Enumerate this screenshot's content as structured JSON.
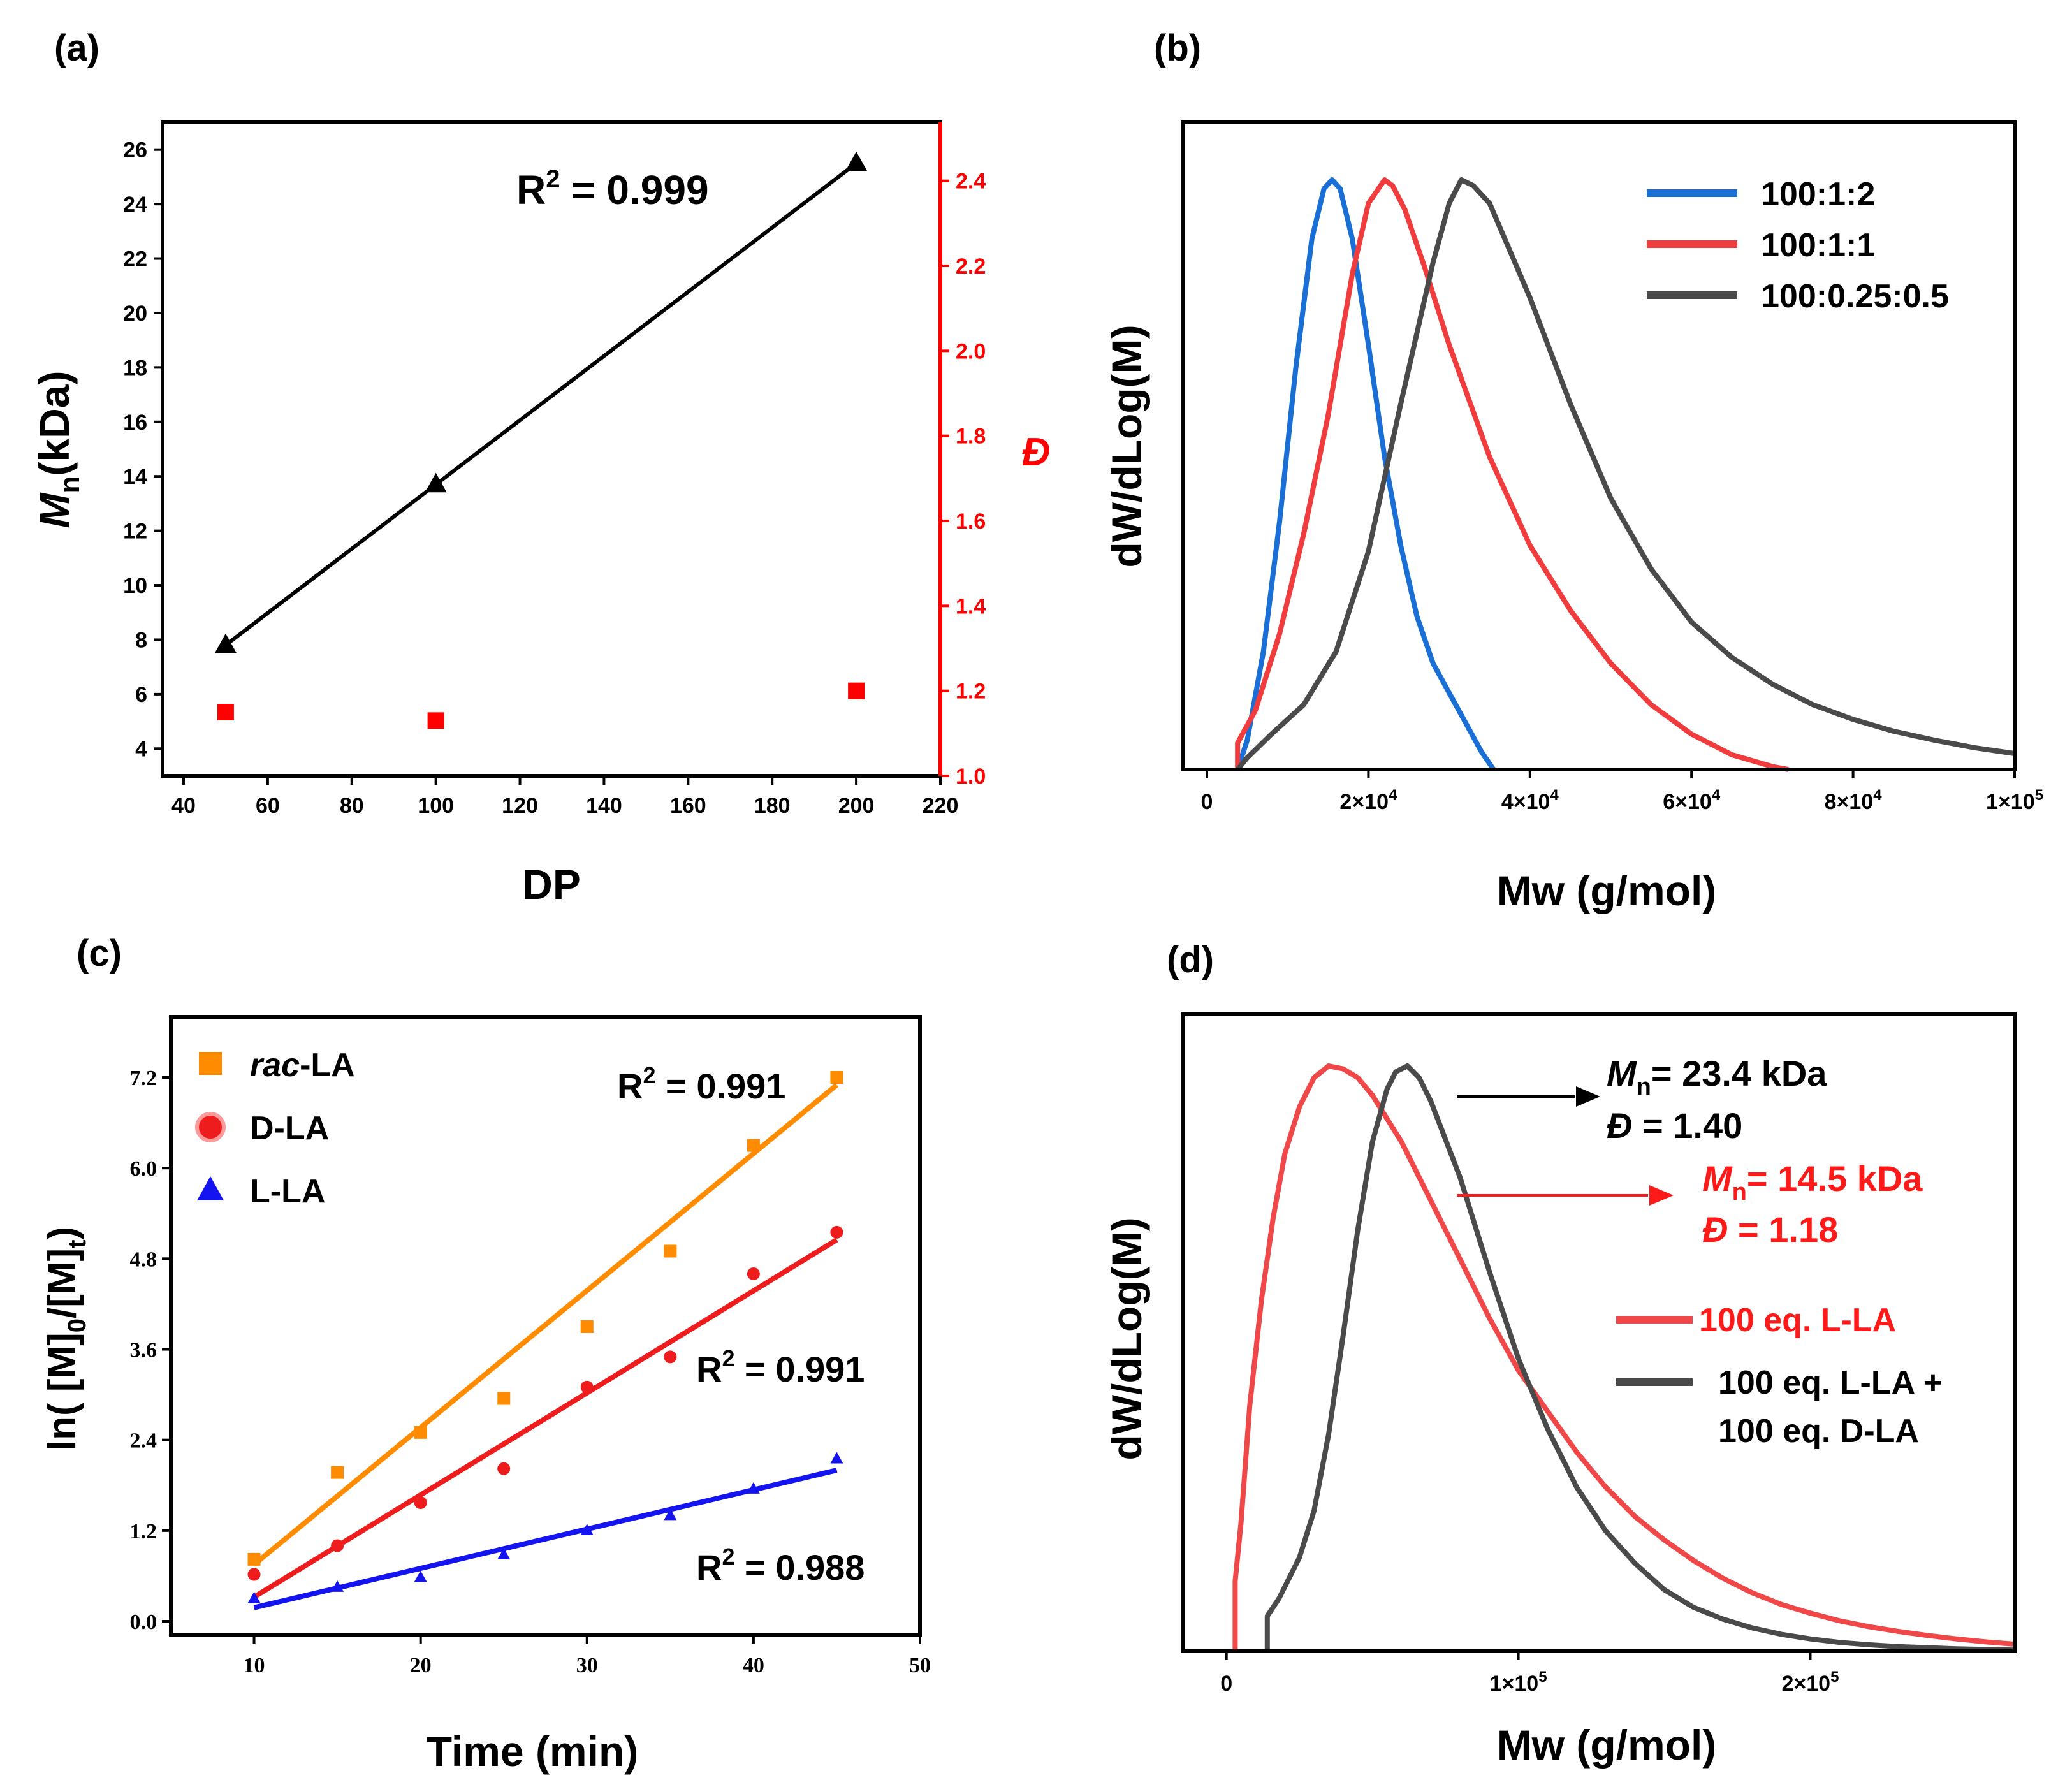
{
  "chart_data": [
    {
      "id": "a",
      "type": "line+scatter",
      "panel_label": "(a)",
      "xlabel": "DP",
      "ylabel_main": "M",
      "ylabel_sub": "n",
      "ylabel_rest": "(kDa)",
      "y2label": "Đ",
      "xlim": [
        35,
        220
      ],
      "ylim": [
        3,
        27
      ],
      "y2lim": [
        1.0,
        2.5
      ],
      "xticks": [
        40,
        60,
        80,
        100,
        120,
        140,
        160,
        180,
        200,
        220
      ],
      "yticks": [
        4,
        6,
        8,
        10,
        12,
        14,
        16,
        18,
        20,
        22,
        24,
        26
      ],
      "y2ticks": [
        "1.0",
        "1.2",
        "1.4",
        "1.6",
        "1.8",
        "2.0",
        "2.2",
        "2.4"
      ],
      "series": [
        {
          "name": "Mn",
          "axis": "left",
          "marker": "triangle",
          "color": "#000000",
          "x": [
            50,
            100,
            200
          ],
          "y": [
            7.8,
            13.7,
            25.5
          ]
        },
        {
          "name": "Đ",
          "axis": "right",
          "marker": "square",
          "color": "#ff0000",
          "x": [
            50,
            100,
            200
          ],
          "y": [
            1.15,
            1.13,
            1.2
          ]
        }
      ],
      "annotation": {
        "text": "R",
        "sup": "2",
        "rest": " = 0.999"
      }
    },
    {
      "id": "b",
      "type": "line",
      "panel_label": "(b)",
      "xlabel": "Mw (g/mol)",
      "ylabel": "dW/dLog(M)",
      "xlim": [
        -3000,
        100000
      ],
      "ylim": [
        0,
        1.1
      ],
      "xticks": [
        {
          "v": 0,
          "base": "0",
          "exp": ""
        },
        {
          "v": 20000,
          "base": "2×10",
          "exp": "4"
        },
        {
          "v": 40000,
          "base": "4×10",
          "exp": "4"
        },
        {
          "v": 60000,
          "base": "6×10",
          "exp": "4"
        },
        {
          "v": 80000,
          "base": "8×10",
          "exp": "4"
        },
        {
          "v": 100000,
          "base": "1×10",
          "exp": "5"
        }
      ],
      "series": [
        {
          "name": "100:1:2",
          "color": "#1a6fd6",
          "x": [
            3800,
            5000,
            7000,
            9000,
            11000,
            13000,
            14500,
            15500,
            16500,
            18000,
            20000,
            22000,
            24000,
            26000,
            28000,
            30000,
            32000,
            34000,
            35500
          ],
          "y": [
            0.0,
            0.05,
            0.2,
            0.42,
            0.68,
            0.9,
            0.985,
            1.0,
            0.985,
            0.9,
            0.72,
            0.53,
            0.38,
            0.26,
            0.18,
            0.13,
            0.08,
            0.03,
            0.0
          ]
        },
        {
          "name": "100:1:1",
          "color": "#f03c3c",
          "x": [
            3800,
            3800,
            6000,
            9000,
            12000,
            15000,
            18000,
            20000,
            22000,
            23000,
            24500,
            27000,
            30000,
            35000,
            40000,
            45000,
            50000,
            55000,
            60000,
            65000,
            70000,
            72000
          ],
          "y": [
            0.0,
            0.045,
            0.1,
            0.23,
            0.4,
            0.6,
            0.84,
            0.96,
            1.0,
            0.99,
            0.95,
            0.85,
            0.72,
            0.53,
            0.38,
            0.27,
            0.18,
            0.11,
            0.06,
            0.025,
            0.005,
            0.0
          ]
        },
        {
          "name": "100:0.25:0.5",
          "color": "#4a4a4a",
          "x": [
            3800,
            5000,
            8000,
            12000,
            16000,
            20000,
            24000,
            28000,
            30000,
            31500,
            33000,
            35000,
            40000,
            45000,
            50000,
            55000,
            60000,
            65000,
            70000,
            75000,
            80000,
            85000,
            90000,
            95000,
            100000
          ],
          "y": [
            0.0,
            0.02,
            0.06,
            0.11,
            0.2,
            0.37,
            0.62,
            0.86,
            0.96,
            1.0,
            0.99,
            0.96,
            0.8,
            0.62,
            0.46,
            0.34,
            0.25,
            0.19,
            0.145,
            0.11,
            0.085,
            0.065,
            0.05,
            0.037,
            0.027
          ]
        }
      ]
    },
    {
      "id": "c",
      "type": "scatter+fit",
      "panel_label": "(c)",
      "xlabel": "Time (min)",
      "ylabel": "ln( [M]0/[M]t)",
      "ylabel_parts": [
        "ln( [M]",
        "0",
        "/[M]",
        "t",
        ")"
      ],
      "xlim": [
        5,
        50
      ],
      "ylim": [
        -0.1,
        8.0
      ],
      "xticks": [
        10,
        20,
        30,
        40,
        50
      ],
      "yticks": [
        "0.0",
        "1.2",
        "2.4",
        "3.6",
        "4.8",
        "6.0",
        "7.2"
      ],
      "series": [
        {
          "name_prefix": "rac",
          "name_rest": "-LA",
          "marker": "square",
          "color": "#ff8c00",
          "x": [
            10,
            15,
            20,
            25,
            30,
            35,
            40,
            45
          ],
          "y": [
            0.82,
            1.97,
            2.5,
            2.95,
            3.9,
            4.9,
            6.3,
            7.2
          ],
          "fit": [
            [
              10,
              0.75
            ],
            [
              45,
              7.1
            ]
          ],
          "r2": "0.991"
        },
        {
          "name_prefix": "",
          "name_rest": "D-LA",
          "marker": "circle",
          "color": "#ee1c1c",
          "x": [
            10,
            15,
            20,
            25,
            30,
            35,
            40,
            45
          ],
          "y": [
            0.62,
            1.0,
            1.57,
            2.02,
            3.1,
            3.5,
            4.6,
            5.15
          ],
          "fit": [
            [
              10,
              0.32
            ],
            [
              45,
              5.05
            ]
          ],
          "r2": "0.991"
        },
        {
          "name_prefix": "",
          "name_rest": "L-LA",
          "marker": "triangle",
          "color": "#1414f0",
          "x": [
            10,
            15,
            20,
            25,
            30,
            35,
            40,
            45
          ],
          "y": [
            0.3,
            0.45,
            0.58,
            0.88,
            1.2,
            1.4,
            1.75,
            2.15
          ],
          "fit": [
            [
              10,
              0.18
            ],
            [
              45,
              2.0
            ]
          ],
          "r2": "0.988"
        }
      ]
    },
    {
      "id": "d",
      "type": "line",
      "panel_label": "(d)",
      "xlabel": "Mw (g/mol)",
      "ylabel": "dW/dLog(M)",
      "xlim": [
        -15000,
        270000
      ],
      "ylim": [
        0,
        1.1
      ],
      "xticks": [
        {
          "v": 0,
          "base": "0",
          "exp": ""
        },
        {
          "v": 100000,
          "base": "1×10",
          "exp": "5"
        },
        {
          "v": 200000,
          "base": "2×10",
          "exp": "5"
        }
      ],
      "series": [
        {
          "name": "100 eq. L-LA",
          "color": "#f04848",
          "x": [
            3000,
            3000,
            5000,
            8000,
            12000,
            16000,
            20000,
            25000,
            30000,
            35000,
            40000,
            45000,
            50000,
            60000,
            70000,
            80000,
            90000,
            100000,
            110000,
            120000,
            130000,
            140000,
            150000,
            160000,
            170000,
            180000,
            190000,
            200000,
            210000,
            220000,
            230000,
            240000,
            250000,
            260000,
            270000
          ],
          "y": [
            0.0,
            0.12,
            0.22,
            0.42,
            0.6,
            0.74,
            0.85,
            0.93,
            0.98,
            1.0,
            0.995,
            0.98,
            0.95,
            0.87,
            0.77,
            0.67,
            0.57,
            0.48,
            0.41,
            0.34,
            0.28,
            0.23,
            0.19,
            0.155,
            0.125,
            0.1,
            0.08,
            0.065,
            0.052,
            0.042,
            0.034,
            0.027,
            0.021,
            0.016,
            0.012
          ]
        },
        {
          "name_lines": [
            "100 eq. L-LA +",
            "100 eq. D-LA"
          ],
          "color": "#4a4a4a",
          "x": [
            14000,
            14000,
            18000,
            25000,
            30000,
            35000,
            40000,
            45000,
            50000,
            55000,
            58000,
            62000,
            66000,
            70000,
            80000,
            90000,
            100000,
            110000,
            120000,
            130000,
            140000,
            150000,
            160000,
            170000,
            180000,
            190000,
            200000,
            210000,
            220000,
            230000,
            240000,
            250000,
            260000,
            270000
          ],
          "y": [
            0.0,
            0.06,
            0.09,
            0.16,
            0.24,
            0.37,
            0.54,
            0.72,
            0.87,
            0.96,
            0.99,
            1.0,
            0.98,
            0.94,
            0.81,
            0.65,
            0.5,
            0.38,
            0.28,
            0.205,
            0.15,
            0.105,
            0.075,
            0.055,
            0.04,
            0.029,
            0.021,
            0.015,
            0.011,
            0.008,
            0.006,
            0.004,
            0.003,
            0.002
          ]
        }
      ],
      "annotations": [
        {
          "color": "#000000",
          "mn_prefix": "M",
          "mn_sub": "n",
          "mn_value": "= 23.4 kDa",
          "d_prefix": "Đ",
          "d_value": " = 1.40"
        },
        {
          "color": "#ff1a1a",
          "mn_prefix": "M",
          "mn_sub": "n",
          "mn_value": "= 14.5 kDa",
          "d_prefix": "Đ",
          "d_value": " = 1.18"
        }
      ]
    }
  ]
}
